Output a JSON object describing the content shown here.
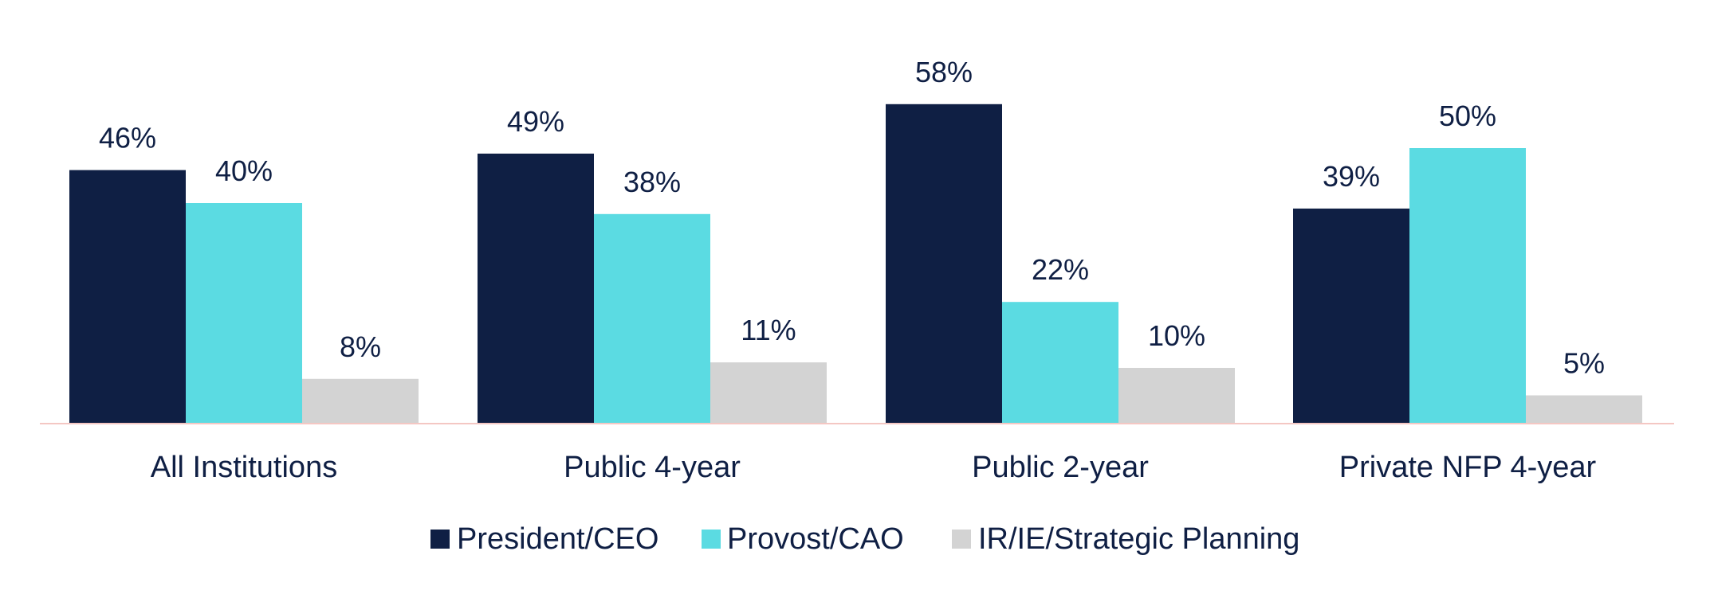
{
  "chart_data": {
    "type": "bar",
    "title": "",
    "xlabel": "",
    "ylabel": "",
    "ylim": [
      0,
      60
    ],
    "grid": false,
    "legend_position": "bottom-center",
    "categories": [
      "All Institutions",
      "Public 4-year",
      "Public 2-year",
      "Private NFP 4-year"
    ],
    "series": [
      {
        "name": "President/CEO",
        "color": "#0f1f44",
        "values": [
          46,
          49,
          58,
          39
        ],
        "labels": [
          "46%",
          "49%",
          "58%",
          "39%"
        ]
      },
      {
        "name": "Provost/CAO",
        "color": "#5bdbe2",
        "values": [
          40,
          38,
          22,
          50
        ],
        "labels": [
          "40%",
          "38%",
          "22%",
          "50%"
        ]
      },
      {
        "name": "IR/IE/Strategic Planning",
        "color": "#d3d3d3",
        "values": [
          8,
          11,
          10,
          5
        ],
        "labels": [
          "8%",
          "11%",
          "10%",
          "5%"
        ]
      }
    ],
    "axis_line_color": "#f4c7c3",
    "text_color": "#0f1f44"
  }
}
